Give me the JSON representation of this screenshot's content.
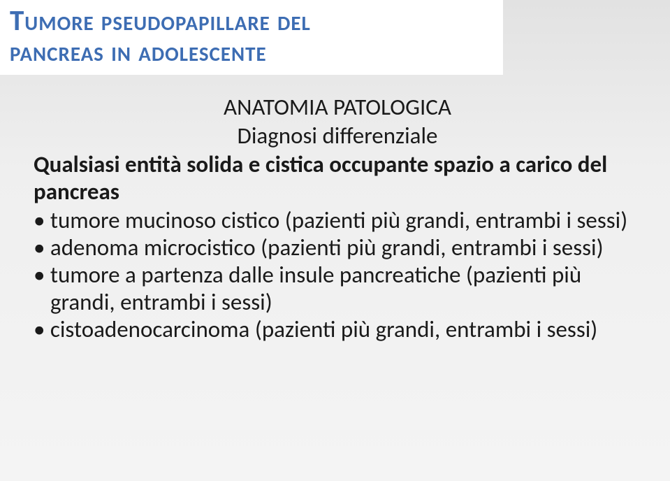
{
  "title": {
    "line1": "Tumore pseudopapillare del",
    "line2": "pancreas in adolescente"
  },
  "subtitle": {
    "line1": "ANATOMIA PATOLOGICA",
    "line2": "Diagnosi differenziale"
  },
  "lead_paragraph": "Qualsiasi entità solida e cistica occupante spazio a carico del pancreas",
  "bullets": [
    "tumore mucinoso cistico (pazienti più grandi, entrambi i sessi)",
    "adenoma microcistico (pazienti più grandi, entrambi i sessi)",
    "tumore a partenza dalle insule pancreatiche (pazienti più grandi, entrambi i sessi)",
    "cistoadenocarcinoma (pazienti più grandi, entrambi i sessi)"
  ],
  "colors": {
    "title_color": "#3d6db3",
    "title_bg": "#ffffff",
    "body_text": "#1a1a1a",
    "slide_bg_top": "#e2e2e2",
    "slide_bg_bottom": "#f4f4f4"
  },
  "fonts": {
    "title_size_pt": 31,
    "body_size_pt": 25
  }
}
